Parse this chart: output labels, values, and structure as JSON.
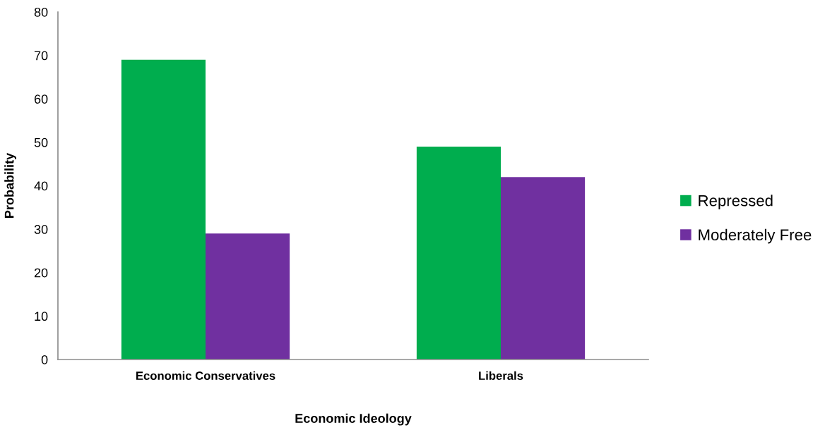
{
  "chart_data": {
    "type": "bar",
    "xlabel": "Economic Ideology",
    "ylabel": "Probability",
    "categories": [
      "Economic Conservatives",
      "Liberals"
    ],
    "series": [
      {
        "name": "Repressed",
        "color": "#00ad4e",
        "values": [
          69,
          49
        ]
      },
      {
        "name": "Moderately Free",
        "color": "#7030a0",
        "values": [
          29,
          42
        ]
      }
    ],
    "ylim": [
      0,
      80
    ],
    "yticks": [
      0,
      10,
      20,
      30,
      40,
      50,
      60,
      70,
      80
    ],
    "grid": false,
    "legend": "right"
  }
}
